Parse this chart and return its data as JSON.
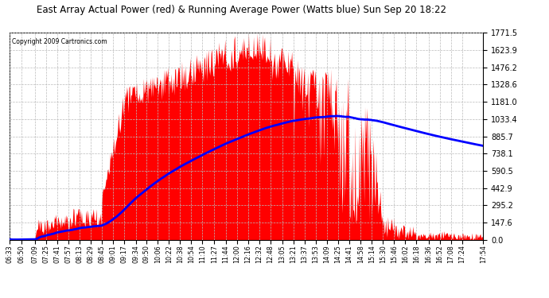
{
  "title": "East Array Actual Power (red) & Running Average Power (Watts blue) Sun Sep 20 18:22",
  "copyright": "Copyright 2009 Cartronics.com",
  "yticks": [
    0.0,
    147.6,
    295.2,
    442.9,
    590.5,
    738.1,
    885.7,
    1033.4,
    1181.0,
    1328.6,
    1476.2,
    1623.9,
    1771.5
  ],
  "ymax": 1771.5,
  "bg_color": "#ffffff",
  "grid_color": "#bbbbbb",
  "bar_color": "#ff0000",
  "avg_color": "#0000ff",
  "xtick_labels": [
    "06:33",
    "06:50",
    "07:09",
    "07:25",
    "07:41",
    "07:57",
    "08:13",
    "08:29",
    "08:45",
    "09:01",
    "09:17",
    "09:34",
    "09:50",
    "10:06",
    "10:22",
    "10:38",
    "10:54",
    "11:10",
    "11:27",
    "11:44",
    "12:00",
    "12:16",
    "12:32",
    "12:48",
    "13:05",
    "13:21",
    "13:37",
    "13:53",
    "14:09",
    "14:25",
    "14:41",
    "14:58",
    "15:14",
    "15:30",
    "15:46",
    "16:02",
    "16:18",
    "16:36",
    "16:52",
    "17:08",
    "17:24",
    "17:54"
  ]
}
